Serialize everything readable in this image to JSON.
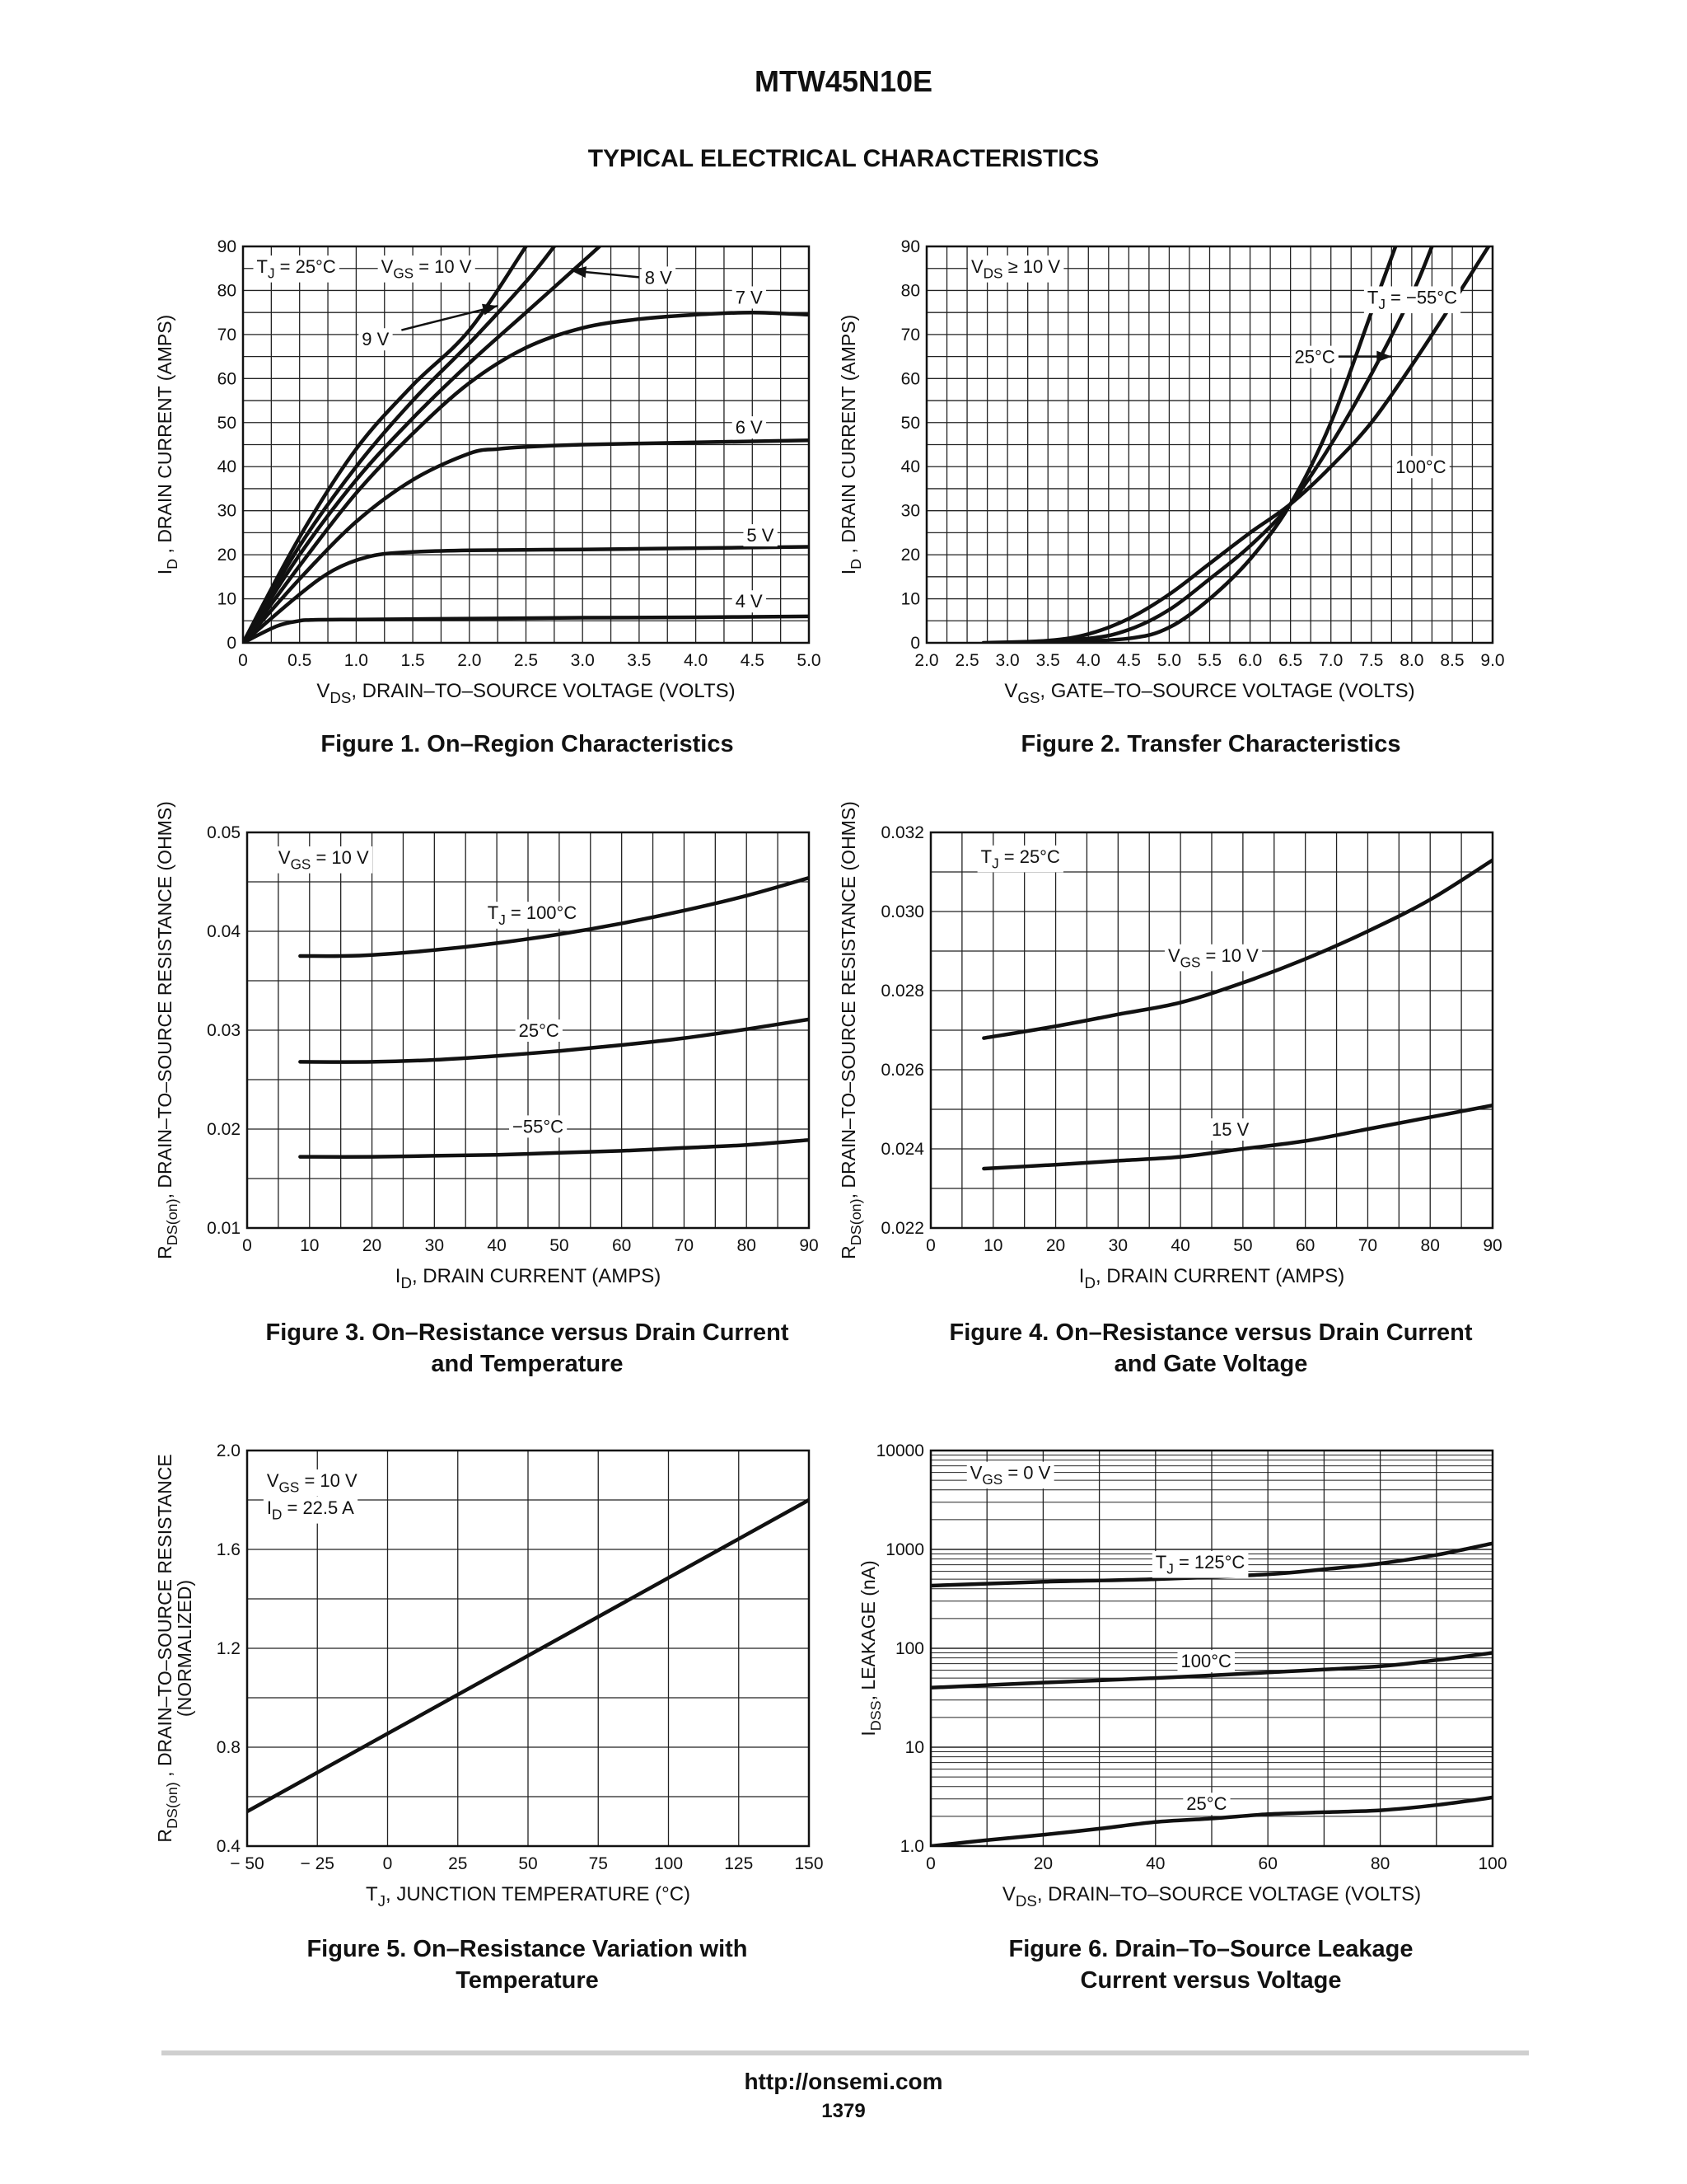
{
  "header": {
    "part_number": "MTW45N10E",
    "section": "TYPICAL ELECTRICAL CHARACTERISTICS"
  },
  "footer": {
    "url": "http://onsemi.com",
    "page": "1379"
  },
  "chart_data": [
    {
      "id": "fig1",
      "type": "line",
      "caption": [
        "Figure 1. On–Region Characteristics"
      ],
      "xlabel": {
        "pre": "V",
        "sub": "DS",
        "post": ", DRAIN–TO–SOURCE VOLTAGE (VOLTS)"
      },
      "ylabel": {
        "pre": "I",
        "sub": "D",
        "post": " , DRAIN CURRENT (AMPS)"
      },
      "xlim": [
        0,
        5
      ],
      "ylim": [
        0,
        90
      ],
      "xticks": [
        0,
        0.5,
        1,
        1.5,
        2,
        2.5,
        3,
        3.5,
        4,
        4.5,
        5
      ],
      "xtick_labels": [
        "0",
        "0.5",
        "1.0",
        "1.5",
        "2.0",
        "2.5",
        "3.0",
        "3.5",
        "4.0",
        "4.5",
        "5.0"
      ],
      "yticks": [
        0,
        10,
        20,
        30,
        40,
        50,
        60,
        70,
        80,
        90
      ],
      "ytick_labels": [
        "0",
        "10",
        "20",
        "30",
        "40",
        "50",
        "60",
        "70",
        "80",
        "90"
      ],
      "minor_x": 0.25,
      "minor_y": 5,
      "yscale": "linear",
      "series": [
        {
          "label": "10 V",
          "x": [
            0,
            0.5,
            1,
            1.5,
            2,
            2.5
          ],
          "y": [
            0,
            24,
            44,
            58.5,
            71,
            90
          ]
        },
        {
          "label": "9 V",
          "x": [
            0,
            0.5,
            1,
            1.5,
            2,
            2.5,
            2.75
          ],
          "y": [
            0,
            22,
            40,
            55,
            68,
            82,
            90
          ]
        },
        {
          "label": "8 V",
          "x": [
            0,
            0.5,
            1,
            1.5,
            2,
            2.5,
            3,
            3.15
          ],
          "y": [
            0,
            20,
            37,
            51,
            63.5,
            75,
            86.5,
            90
          ]
        },
        {
          "label": "7 V",
          "x": [
            0,
            0.5,
            1,
            1.5,
            2,
            2.5,
            3,
            3.5,
            4,
            4.5,
            5
          ],
          "y": [
            0,
            17.5,
            34,
            47.5,
            59,
            67,
            71.5,
            73.5,
            74.5,
            75,
            74.5
          ]
        },
        {
          "label": "6 V",
          "x": [
            0,
            0.5,
            1,
            1.5,
            2,
            2.25,
            2.5,
            3,
            4,
            5
          ],
          "y": [
            0,
            14.5,
            27.5,
            37,
            43,
            44,
            44.5,
            45,
            45.5,
            46
          ]
        },
        {
          "label": "5 V",
          "x": [
            0,
            0.5,
            0.8,
            1.1,
            1.4,
            2,
            3,
            4,
            5
          ],
          "y": [
            0,
            11,
            16.5,
            19.5,
            20.5,
            21,
            21.2,
            21.5,
            21.8
          ]
        },
        {
          "label": "4 V",
          "x": [
            0,
            0.3,
            0.5,
            0.6,
            1,
            2,
            3,
            4,
            5
          ],
          "y": [
            0,
            3.8,
            5,
            5.2,
            5.3,
            5.5,
            5.7,
            5.8,
            6
          ]
        }
      ],
      "annotations": [
        {
          "text": "T",
          "sub": "J",
          "rest": " =  25°C",
          "x": 0.12,
          "y": 85.5
        },
        {
          "text": "V",
          "sub": "GS",
          "rest": " = 10 V",
          "x": 1.22,
          "y": 85.5
        },
        {
          "text": "9 V",
          "x": 1.05,
          "y": 69
        },
        {
          "text": "8 V",
          "x": 3.55,
          "y": 83
        },
        {
          "text": "7 V",
          "x": 4.35,
          "y": 78.5
        },
        {
          "text": "6 V",
          "x": 4.35,
          "y": 49
        },
        {
          "text": "5 V",
          "x": 4.45,
          "y": 24.5
        },
        {
          "text": "4 V",
          "x": 4.35,
          "y": 9.5
        }
      ],
      "arrows": [
        {
          "from": [
            1.4,
            71
          ],
          "to": [
            2.25,
            76.5
          ]
        },
        {
          "from": [
            3.5,
            83
          ],
          "to": [
            2.9,
            84.5
          ]
        }
      ]
    },
    {
      "id": "fig2",
      "type": "line",
      "caption": [
        "Figure 2. Transfer Characteristics"
      ],
      "xlabel": {
        "pre": "V",
        "sub": "GS",
        "post": ", GATE–TO–SOURCE VOLTAGE (VOLTS)"
      },
      "ylabel": {
        "pre": "I",
        "sub": "D",
        "post": " , DRAIN CURRENT (AMPS)"
      },
      "xlim": [
        2,
        9
      ],
      "ylim": [
        0,
        90
      ],
      "xticks": [
        2,
        2.5,
        3,
        3.5,
        4,
        4.5,
        5,
        5.5,
        6,
        6.5,
        7,
        7.5,
        8,
        8.5,
        9
      ],
      "xtick_labels": [
        "2.0",
        "2.5",
        "3.0",
        "3.5",
        "4.0",
        "4.5",
        "5.0",
        "5.5",
        "6.0",
        "6.5",
        "7.0",
        "7.5",
        "8.0",
        "8.5",
        "9.0"
      ],
      "yticks": [
        0,
        10,
        20,
        30,
        40,
        50,
        60,
        70,
        80,
        90
      ],
      "ytick_labels": [
        "0",
        "10",
        "20",
        "30",
        "40",
        "50",
        "60",
        "70",
        "80",
        "90"
      ],
      "minor_x": 0.25,
      "minor_y": 5,
      "yscale": "linear",
      "series": [
        {
          "label": "T_J = −55°C",
          "x": [
            3.5,
            4.5,
            5,
            5.5,
            6,
            6.5,
            7,
            7.5,
            7.8
          ],
          "y": [
            0,
            1,
            3.5,
            10,
            19,
            31.5,
            50,
            75,
            90
          ]
        },
        {
          "label": "25°C",
          "x": [
            3,
            4,
            4.5,
            5,
            5.5,
            6,
            6.5,
            7,
            7.5,
            8,
            8.25
          ],
          "y": [
            0,
            1,
            3,
            7.5,
            14.5,
            22,
            31.5,
            45,
            61,
            79,
            90
          ]
        },
        {
          "label": "100°C",
          "x": [
            2.7,
            3.5,
            4,
            4.5,
            5,
            5.5,
            6,
            6.5,
            7,
            7.5,
            8,
            8.5,
            8.95
          ],
          "y": [
            0,
            0.5,
            2,
            5.5,
            11,
            18,
            25,
            31.5,
            40,
            50,
            63,
            77,
            90
          ]
        }
      ],
      "annotations": [
        {
          "text": "V",
          "sub": "DS",
          "rest": " ≥ 10 V",
          "x": 2.55,
          "y": 85.5
        },
        {
          "text": "T",
          "sub": "J",
          "rest": " =  −55°C",
          "x": 7.45,
          "y": 78.5
        },
        {
          "text": "25°C",
          "x": 6.55,
          "y": 65
        },
        {
          "text": "100°C",
          "x": 7.8,
          "y": 40
        }
      ],
      "arrows": [
        {
          "from": [
            7.0,
            65
          ],
          "to": [
            7.75,
            65
          ]
        }
      ]
    },
    {
      "id": "fig3",
      "type": "line",
      "caption": [
        "Figure 3. On–Resistance versus Drain Current",
        "and Temperature"
      ],
      "xlabel": {
        "pre": "I",
        "sub": "D",
        "post": ", DRAIN CURRENT (AMPS)"
      },
      "ylabel": {
        "pre": "R",
        "sub": "DS(on)",
        "post": ", DRAIN–TO–SOURCE RESISTANCE (OHMS)"
      },
      "xlim": [
        0,
        90
      ],
      "ylim": [
        0.01,
        0.05
      ],
      "xticks": [
        0,
        10,
        20,
        30,
        40,
        50,
        60,
        70,
        80,
        90
      ],
      "xtick_labels": [
        "0",
        "10",
        "20",
        "30",
        "40",
        "50",
        "60",
        "70",
        "80",
        "90"
      ],
      "yticks": [
        0.01,
        0.02,
        0.03,
        0.04,
        0.05
      ],
      "ytick_labels": [
        "0.01",
        "0.02",
        "0.03",
        "0.04",
        "0.05"
      ],
      "minor_x": 5,
      "minor_y": 0.005,
      "yscale": "linear",
      "series": [
        {
          "label": "T_J = 100°C",
          "x": [
            8.5,
            15,
            20,
            30,
            40,
            50,
            60,
            70,
            80,
            90
          ],
          "y": [
            0.0375,
            0.0375,
            0.0376,
            0.0381,
            0.0388,
            0.0397,
            0.0408,
            0.0421,
            0.0436,
            0.0454
          ]
        },
        {
          "label": "25°C",
          "x": [
            8.5,
            20,
            30,
            40,
            50,
            60,
            70,
            80,
            90
          ],
          "y": [
            0.0268,
            0.0268,
            0.027,
            0.0274,
            0.0279,
            0.0285,
            0.0292,
            0.0301,
            0.0311
          ]
        },
        {
          "label": "−55°C",
          "x": [
            8.5,
            20,
            30,
            40,
            50,
            60,
            70,
            80,
            90
          ],
          "y": [
            0.0172,
            0.0172,
            0.0173,
            0.0174,
            0.0176,
            0.0178,
            0.0181,
            0.0184,
            0.0189
          ]
        }
      ],
      "annotations": [
        {
          "text": "V",
          "sub": "GS",
          "rest": " = 10 V",
          "x": 5,
          "y": 0.0475
        },
        {
          "text": "T",
          "sub": "J",
          "rest": " =  100°C",
          "x": 38.5,
          "y": 0.0419
        },
        {
          "text": "25°C",
          "x": 43.5,
          "y": 0.03
        },
        {
          "text": "−55°C",
          "x": 42.5,
          "y": 0.0203
        }
      ],
      "arrows": []
    },
    {
      "id": "fig4",
      "type": "line",
      "caption": [
        "Figure 4. On–Resistance versus Drain Current",
        "and Gate Voltage"
      ],
      "xlabel": {
        "pre": "I",
        "sub": "D",
        "post": ", DRAIN CURRENT (AMPS)"
      },
      "ylabel": {
        "pre": "R",
        "sub": "DS(on)",
        "post": ", DRAIN–TO–SOURCE RESISTANCE (OHMS)"
      },
      "xlim": [
        0,
        90
      ],
      "ylim": [
        0.022,
        0.032
      ],
      "xticks": [
        0,
        10,
        20,
        30,
        40,
        50,
        60,
        70,
        80,
        90
      ],
      "xtick_labels": [
        "0",
        "10",
        "20",
        "30",
        "40",
        "50",
        "60",
        "70",
        "80",
        "90"
      ],
      "yticks": [
        0.022,
        0.024,
        0.026,
        0.028,
        0.03,
        0.032
      ],
      "ytick_labels": [
        "0.022",
        "0.024",
        "0.026",
        "0.028",
        "0.030",
        "0.032"
      ],
      "minor_x": 5,
      "minor_y": 0.001,
      "yscale": "linear",
      "series": [
        {
          "label": "V_GS = 10 V",
          "x": [
            8.5,
            20,
            30,
            40,
            50,
            60,
            70,
            80,
            90
          ],
          "y": [
            0.0268,
            0.0271,
            0.0274,
            0.0277,
            0.0282,
            0.0288,
            0.0295,
            0.0303,
            0.0313
          ]
        },
        {
          "label": "15 V",
          "x": [
            8.5,
            20,
            30,
            40,
            50,
            60,
            70,
            80,
            90
          ],
          "y": [
            0.0235,
            0.0236,
            0.0237,
            0.0238,
            0.024,
            0.0242,
            0.0245,
            0.0248,
            0.0251
          ]
        }
      ],
      "annotations": [
        {
          "text": "T",
          "sub": "J",
          "rest": " =  25°C",
          "x": 8,
          "y": 0.0314
        },
        {
          "text": "V",
          "sub": "GS",
          "rest": " = 10 V",
          "x": 38,
          "y": 0.0289
        },
        {
          "text": "15 V",
          "x": 45,
          "y": 0.0245
        }
      ],
      "arrows": []
    },
    {
      "id": "fig5",
      "type": "line",
      "caption": [
        "Figure 5. On–Resistance Variation with",
        "Temperature"
      ],
      "xlabel": {
        "pre": "T",
        "sub": "J",
        "post": ", JUNCTION TEMPERATURE (°C)"
      },
      "ylabel": {
        "pre": "R",
        "sub": "DS(on)",
        "post": " , DRAIN–TO–SOURCE RESISTANCE",
        "line2": "(NORMALIZED)"
      },
      "xlim": [
        -50,
        150
      ],
      "ylim": [
        0.4,
        2.0
      ],
      "xticks": [
        -50,
        -25,
        0,
        25,
        50,
        75,
        100,
        125,
        150
      ],
      "xtick_labels": [
        "− 50",
        "− 25",
        "0",
        "25",
        "50",
        "75",
        "100",
        "125",
        "150"
      ],
      "yticks": [
        0.4,
        0.8,
        1.2,
        1.6,
        2.0
      ],
      "ytick_labels": [
        "0.4",
        "0.8",
        "1.2",
        "1.6",
        "2.0"
      ],
      "minor_x": 25,
      "minor_y": 0.2,
      "yscale": "linear",
      "series": [
        {
          "label": "",
          "x": [
            -50,
            150
          ],
          "y": [
            0.54,
            1.8
          ]
        }
      ],
      "annotations": [
        {
          "text": "V",
          "sub": "GS",
          "rest": " = 10 V",
          "x": -43,
          "y": 1.88
        },
        {
          "text": "I",
          "sub": "D",
          "rest": " = 22.5 A",
          "x": -43,
          "y": 1.77
        }
      ],
      "arrows": []
    },
    {
      "id": "fig6",
      "type": "line",
      "caption": [
        "Figure 6. Drain–To–Source Leakage",
        "Current versus Voltage"
      ],
      "xlabel": {
        "pre": "V",
        "sub": "DS",
        "post": ", DRAIN–TO–SOURCE VOLTAGE (VOLTS)"
      },
      "ylabel": {
        "pre": "I",
        "sub": "DSS",
        "post": ", LEAKAGE (nA)"
      },
      "xlim": [
        0,
        100
      ],
      "ylim": [
        1,
        10000
      ],
      "xticks": [
        0,
        20,
        40,
        60,
        80,
        100
      ],
      "xtick_labels": [
        "0",
        "20",
        "40",
        "60",
        "80",
        "100"
      ],
      "yticks": [
        1,
        10,
        100,
        1000,
        10000
      ],
      "ytick_labels": [
        "1.0",
        "10",
        "100",
        "1000",
        "10000"
      ],
      "minor_x": 10,
      "yscale": "log",
      "series": [
        {
          "label": "T_J = 125°C",
          "x": [
            0,
            20,
            40,
            60,
            70,
            80,
            90,
            100
          ],
          "y": [
            430,
            470,
            500,
            560,
            630,
            720,
            880,
            1150
          ]
        },
        {
          "label": "100°C",
          "x": [
            0,
            20,
            40,
            60,
            80,
            90,
            100
          ],
          "y": [
            40,
            45,
            50,
            57,
            66,
            76,
            90
          ]
        },
        {
          "label": "25°C",
          "x": [
            0,
            10,
            20,
            30,
            40,
            50,
            60,
            70,
            80,
            90,
            100
          ],
          "y": [
            1.0,
            1.15,
            1.3,
            1.5,
            1.75,
            1.9,
            2.1,
            2.2,
            2.3,
            2.6,
            3.1
          ]
        }
      ],
      "annotations": [
        {
          "text": "V",
          "sub": "GS",
          "rest": " = 0 V",
          "x": 7,
          "y": 6000
        },
        {
          "text": "T",
          "sub": "J",
          "rest": " =  125°C",
          "x": 40,
          "y": 750
        },
        {
          "text": "100°C",
          "x": 44.5,
          "y": 75
        },
        {
          "text": "25°C",
          "x": 45.5,
          "y": 2.7
        }
      ],
      "arrows": []
    }
  ]
}
